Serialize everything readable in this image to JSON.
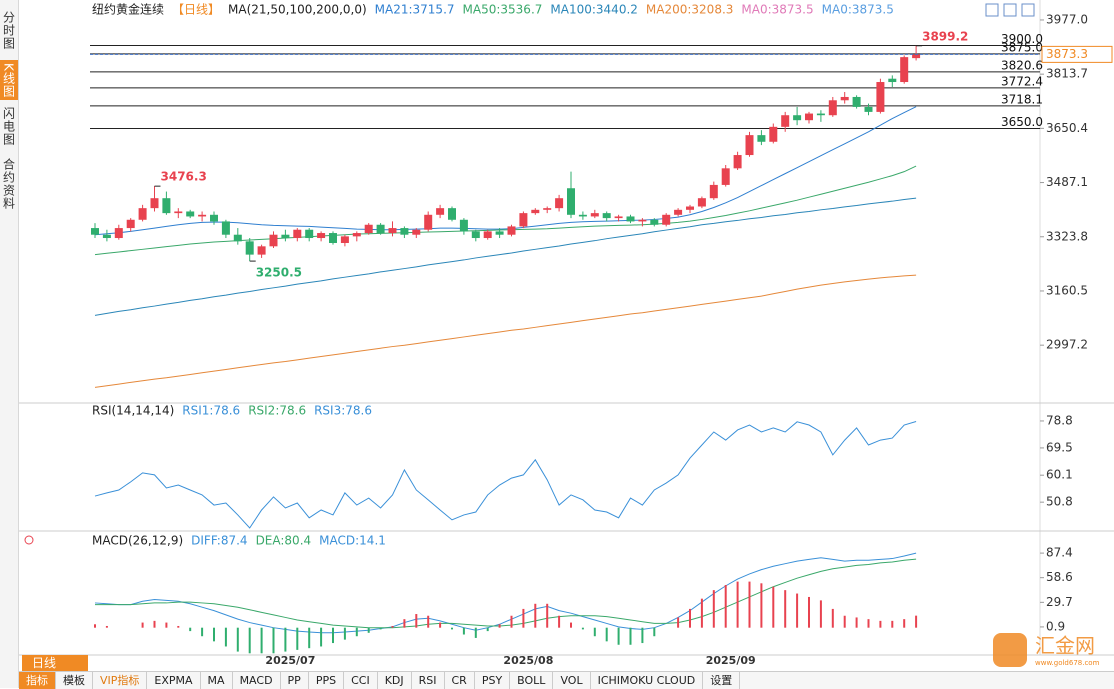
{
  "chart_data": [
    {
      "type": "candlestick",
      "title": "纽约黄金连续",
      "subtitle": "【日线】",
      "indicator": "MA(21,50,100,200,0,0)",
      "up_color": "#e8424f",
      "down_color": "#2fae6e",
      "categories": [
        null,
        null,
        null,
        null,
        null,
        null,
        null,
        null,
        null,
        null,
        null,
        null,
        null,
        null,
        null,
        null,
        "2025/07",
        null,
        null,
        null,
        null,
        null,
        null,
        null,
        null,
        null,
        null,
        null,
        null,
        null,
        null,
        null,
        null,
        null,
        null,
        null,
        "2025/08",
        null,
        null,
        null,
        null,
        null,
        null,
        null,
        null,
        null,
        null,
        null,
        null,
        null,
        null,
        null,
        null,
        "2025/09",
        null,
        null,
        null,
        null,
        null,
        null,
        null,
        null,
        null,
        null,
        null,
        null,
        null,
        null,
        null,
        null
      ],
      "open": [
        3350,
        3330,
        3320,
        3350,
        3375,
        3410,
        3440,
        3395,
        3400,
        3385,
        3390,
        3370,
        3330,
        3310,
        3270,
        3295,
        3330,
        3320,
        3345,
        3320,
        3335,
        3305,
        3325,
        3335,
        3360,
        3335,
        3350,
        3330,
        3345,
        3390,
        3410,
        3375,
        3340,
        3320,
        3340,
        3330,
        3355,
        3395,
        3405,
        3410,
        3470,
        3390,
        3385,
        3395,
        3380,
        3385,
        3370,
        3375,
        3360,
        3390,
        3405,
        3415,
        3440,
        3480,
        3530,
        3570,
        3630,
        3610,
        3655,
        3690,
        3675,
        3695,
        3690,
        3735,
        3745,
        3715,
        3700,
        3800,
        3790,
        3862
      ],
      "high": [
        3365,
        3345,
        3360,
        3380,
        3420,
        3476.3,
        3460,
        3410,
        3405,
        3400,
        3400,
        3375,
        3350,
        3320,
        3300,
        3340,
        3345,
        3350,
        3350,
        3340,
        3340,
        3330,
        3340,
        3365,
        3365,
        3370,
        3355,
        3350,
        3400,
        3420,
        3415,
        3380,
        3345,
        3345,
        3350,
        3360,
        3400,
        3410,
        3415,
        3450,
        3520,
        3400,
        3405,
        3400,
        3390,
        3390,
        3380,
        3380,
        3395,
        3410,
        3420,
        3445,
        3490,
        3540,
        3580,
        3640,
        3645,
        3665,
        3700,
        3715,
        3700,
        3705,
        3745,
        3760,
        3750,
        3725,
        3800,
        3810,
        3870,
        3899.2
      ],
      "low": [
        3320,
        3310,
        3315,
        3340,
        3370,
        3400,
        3390,
        3380,
        3380,
        3370,
        3360,
        3320,
        3300,
        3250.5,
        3260,
        3290,
        3310,
        3310,
        3310,
        3310,
        3300,
        3295,
        3310,
        3330,
        3330,
        3325,
        3320,
        3320,
        3340,
        3380,
        3370,
        3330,
        3310,
        3315,
        3320,
        3325,
        3350,
        3390,
        3395,
        3400,
        3380,
        3375,
        3380,
        3370,
        3370,
        3365,
        3355,
        3355,
        3355,
        3385,
        3395,
        3410,
        3435,
        3475,
        3525,
        3565,
        3600,
        3605,
        3640,
        3660,
        3665,
        3670,
        3685,
        3725,
        3710,
        3690,
        3695,
        3775,
        3785,
        3855
      ],
      "close": [
        3330,
        3320,
        3350,
        3375,
        3410,
        3440,
        3395,
        3400,
        3385,
        3390,
        3370,
        3330,
        3310,
        3270,
        3295,
        3330,
        3320,
        3345,
        3320,
        3335,
        3305,
        3325,
        3335,
        3360,
        3335,
        3350,
        3330,
        3345,
        3390,
        3410,
        3375,
        3340,
        3320,
        3340,
        3330,
        3355,
        3395,
        3405,
        3410,
        3440,
        3390,
        3385,
        3395,
        3380,
        3385,
        3370,
        3375,
        3360,
        3390,
        3405,
        3415,
        3440,
        3480,
        3530,
        3570,
        3630,
        3610,
        3655,
        3690,
        3675,
        3695,
        3690,
        3735,
        3745,
        3715,
        3700,
        3790,
        3790,
        3865,
        3873.3
      ],
      "series": [
        {
          "name": "MA21:3715.7",
          "color": "#2f7fd0",
          "values": [
            3330,
            3333,
            3336,
            3340,
            3345,
            3350,
            3355,
            3360,
            3364,
            3367,
            3368,
            3368,
            3366,
            3363,
            3360,
            3358,
            3357,
            3356,
            3355,
            3353,
            3351,
            3349,
            3347,
            3346,
            3345,
            3345,
            3346,
            3347,
            3348,
            3350,
            3350,
            3349,
            3348,
            3347,
            3347,
            3348,
            3352,
            3356,
            3360,
            3364,
            3367,
            3369,
            3370,
            3371,
            3372,
            3373,
            3374,
            3376,
            3379,
            3383,
            3390,
            3400,
            3412,
            3426,
            3442,
            3460,
            3478,
            3496,
            3514,
            3532,
            3550,
            3568,
            3586,
            3604,
            3622,
            3640,
            3660,
            3680,
            3698,
            3715.7
          ]
        },
        {
          "name": "MA50:3536.7",
          "color": "#3aa86a",
          "values": [
            3270,
            3274,
            3278,
            3282,
            3286,
            3290,
            3294,
            3298,
            3302,
            3305,
            3308,
            3310,
            3312,
            3314,
            3316,
            3318,
            3320,
            3322,
            3324,
            3326,
            3328,
            3330,
            3332,
            3333,
            3334,
            3335,
            3336,
            3337,
            3338,
            3339,
            3340,
            3341,
            3342,
            3343,
            3344,
            3345,
            3346,
            3347,
            3348,
            3350,
            3352,
            3354,
            3356,
            3357,
            3358,
            3359,
            3360,
            3362,
            3364,
            3367,
            3371,
            3376,
            3382,
            3388,
            3395,
            3402,
            3410,
            3418,
            3426,
            3434,
            3443,
            3452,
            3461,
            3470,
            3479,
            3488,
            3498,
            3508,
            3520,
            3536.7
          ]
        },
        {
          "name": "MA100:3440.2",
          "color": "#2a86b8",
          "values": [
            3087,
            3093,
            3099,
            3104,
            3110,
            3115,
            3121,
            3126,
            3132,
            3137,
            3143,
            3148,
            3154,
            3159,
            3165,
            3170,
            3175,
            3181,
            3186,
            3191,
            3197,
            3202,
            3207,
            3212,
            3218,
            3223,
            3228,
            3233,
            3239,
            3244,
            3249,
            3254,
            3260,
            3265,
            3270,
            3275,
            3281,
            3286,
            3291,
            3296,
            3302,
            3307,
            3312,
            3318,
            3323,
            3328,
            3333,
            3339,
            3344,
            3349,
            3354,
            3360,
            3364,
            3369,
            3373,
            3378,
            3382,
            3387,
            3391,
            3396,
            3400,
            3405,
            3409,
            3414,
            3418,
            3423,
            3427,
            3431,
            3436,
            3440.2
          ]
        },
        {
          "name": "MA200:3208.3",
          "color": "#e5883a",
          "values": [
            2870,
            2875,
            2880,
            2885,
            2890,
            2895,
            2899,
            2904,
            2909,
            2914,
            2919,
            2924,
            2929,
            2934,
            2939,
            2944,
            2948,
            2953,
            2958,
            2963,
            2968,
            2973,
            2978,
            2983,
            2988,
            2993,
            2997,
            3002,
            3007,
            3012,
            3017,
            3022,
            3027,
            3032,
            3037,
            3042,
            3046,
            3051,
            3056,
            3061,
            3066,
            3071,
            3076,
            3081,
            3086,
            3091,
            3095,
            3100,
            3105,
            3110,
            3115,
            3120,
            3125,
            3130,
            3135,
            3140,
            3145,
            3152,
            3159,
            3166,
            3172,
            3178,
            3183,
            3188,
            3192,
            3196,
            3200,
            3203,
            3206,
            3208.3
          ]
        }
      ],
      "extra_labels": [
        {
          "label": "MA0:3873.5",
          "color": "#e07ab8"
        },
        {
          "label": "MA0:3873.5",
          "color": "#5a9ee0"
        }
      ],
      "ylim": [
        2832,
        4007
      ],
      "yticks": [
        {
          "value": 3977,
          "label": "3977.0"
        },
        3813.7,
        3650.4,
        3487.1,
        3323.8,
        3160.5,
        2997.2
      ],
      "hlines": [
        {
          "value": 3900,
          "label": "3900.0"
        },
        {
          "value": 3875,
          "label": "3875.0"
        },
        3820.6,
        3772.4,
        3718.1,
        {
          "value": 3650,
          "label": "3650.0"
        }
      ],
      "marked": [
        {
          "index": 5,
          "field": "high"
        },
        {
          "index": 13,
          "field": "low"
        },
        {
          "index": 69,
          "field": "high"
        }
      ]
    },
    {
      "type": "line",
      "title": "RSI(14,14,14)",
      "series": [
        {
          "name": "RSI1:78.6",
          "color": "#3a90d8",
          "values": [
            52.9,
            54,
            55,
            57.8,
            60.9,
            60.2,
            55.7,
            56.7,
            55,
            53.3,
            49.8,
            50.5,
            46.4,
            41.9,
            48.1,
            52.6,
            48.8,
            50.5,
            45.4,
            48.1,
            46.4,
            54,
            49.8,
            52.2,
            48.8,
            53.3,
            61.9,
            55,
            51.6,
            48.1,
            44.7,
            46.4,
            47.4,
            53.3,
            56.7,
            59.1,
            60.2,
            65.4,
            58.5,
            49.8,
            53.3,
            51.6,
            48.1,
            47.4,
            45.4,
            52.2,
            49.8,
            55,
            57.4,
            60.2,
            66,
            70.5,
            75,
            72.2,
            75.7,
            77.4,
            75,
            76.4,
            75,
            78.5,
            77.4,
            75,
            67.1,
            72.2,
            76.4,
            70.5,
            72.2,
            72.9,
            77.4,
            78.6
          ]
        }
      ],
      "extra_labels": [
        {
          "label": "RSI2:78.6",
          "color": "#3aa86a"
        },
        {
          "label": "RSI3:78.6",
          "color": "#3a90d8"
        }
      ],
      "ylim": [
        41.2,
        84.3
      ],
      "yticks": [
        78.8,
        69.5,
        60.1,
        50.8
      ]
    },
    {
      "type": "macd",
      "title": "MACD(26,12,9)",
      "series": [
        {
          "name": "DIFF:87.4",
          "color": "#3a90d8",
          "values": [
            29,
            28,
            27,
            27,
            31,
            33,
            32,
            31,
            28,
            24,
            20,
            15,
            10,
            6,
            3,
            0,
            -2,
            -4,
            -5,
            -6,
            -6,
            -5,
            -4,
            -3,
            -1,
            1,
            6,
            10,
            11,
            8,
            4,
            0,
            -3,
            0,
            4,
            10,
            16,
            22,
            25,
            20,
            17,
            13,
            9,
            5,
            1,
            -1,
            -2,
            0,
            5,
            12,
            20,
            30,
            40,
            49,
            57,
            63,
            68,
            72,
            75,
            78,
            80,
            82,
            80,
            78,
            79,
            79,
            80,
            81,
            84,
            87.4
          ]
        },
        {
          "name": "DEA:80.4",
          "color": "#3aa86a",
          "values": [
            27,
            27,
            27,
            27,
            28,
            29,
            29,
            30,
            30,
            29,
            28,
            26,
            24,
            21,
            18,
            15,
            12,
            9,
            7,
            5,
            3,
            2,
            1,
            0,
            0,
            0,
            1,
            2,
            4,
            5,
            5,
            4,
            3,
            2,
            2,
            3,
            5,
            8,
            11,
            13,
            14,
            14,
            14,
            13,
            11,
            9,
            7,
            5,
            5,
            6,
            9,
            13,
            18,
            24,
            30,
            36,
            42,
            48,
            53,
            58,
            62,
            66,
            69,
            71,
            73,
            74,
            76,
            77,
            79,
            80.4
          ]
        },
        {
          "name": "MACD:14.1",
          "color": "#3a90d8",
          "up_color": "#e8424f",
          "down_color": "#2fae6e",
          "values": [
            4,
            2,
            0,
            0,
            6,
            8,
            6,
            2,
            -4,
            -10,
            -16,
            -22,
            -28,
            -30,
            -30,
            -30,
            -28,
            -26,
            -24,
            -22,
            -18,
            -14,
            -10,
            -6,
            -2,
            2,
            10,
            16,
            14,
            6,
            -2,
            -8,
            -12,
            -4,
            4,
            14,
            22,
            28,
            28,
            14,
            6,
            -2,
            -10,
            -16,
            -20,
            -20,
            -18,
            -10,
            0,
            12,
            22,
            34,
            44,
            50,
            54,
            54,
            52,
            48,
            44,
            40,
            36,
            32,
            22,
            14,
            12,
            10,
            8,
            8,
            10,
            14.1
          ]
        }
      ],
      "ylim": [
        -32,
        108.6
      ],
      "yticks": [
        87.4,
        58.6,
        29.7,
        0.9
      ]
    }
  ],
  "ui": {
    "sidebar": [
      "分时图",
      "K线图",
      "闪电图",
      "合约资料"
    ],
    "period_tab": "日线",
    "toolbar": [
      "指标",
      "模板",
      "VIP指标",
      "EXPMA",
      "MA",
      "MACD",
      "PP",
      "PPS",
      "CCI",
      "KDJ",
      "RSI",
      "CR",
      "PSY",
      "BOLL",
      "VOL",
      "ICHIMOKU CLOUD",
      "设置"
    ],
    "watermark": "汇金网",
    "watermark_url": "www.gold678.com"
  }
}
